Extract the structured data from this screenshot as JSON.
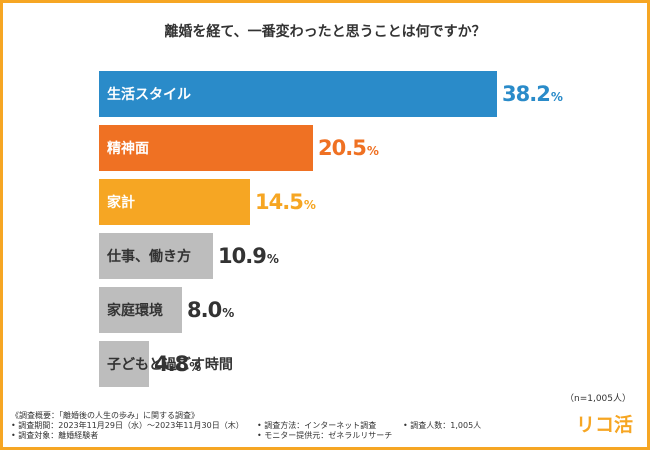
{
  "colors": {
    "blue": "#2a8bc9",
    "orange": "#ef7123",
    "light_orange": "#f6a623",
    "gray": "#bdbdbd",
    "dark_text": "#333333"
  },
  "chart_data": {
    "type": "bar",
    "orientation": "horizontal",
    "title": "離婚を経て、一番変わったと思うことは何ですか？",
    "categories": [
      "生活スタイル",
      "精神面",
      "家計",
      "仕事、働き方",
      "家庭環境",
      "子どもと過ごす時間"
    ],
    "values": [
      38.2,
      20.5,
      14.5,
      10.9,
      8.0,
      4.8
    ],
    "value_labels": [
      {
        "num": "38.2",
        "unit": "%"
      },
      {
        "num": "20.5",
        "unit": "%"
      },
      {
        "num": "14.5",
        "unit": "%"
      },
      {
        "num": "10.9",
        "unit": "%"
      },
      {
        "num": "8.0",
        "unit": "%"
      },
      {
        "num": "4.8",
        "unit": "%"
      }
    ],
    "bar_colors": [
      "#2a8bc9",
      "#ef7123",
      "#f6a623",
      "#bdbdbd",
      "#bdbdbd",
      "#bdbdbd"
    ],
    "label_colors": [
      "#ffffff",
      "#ffffff",
      "#ffffff",
      "#333333",
      "#333333",
      "#333333"
    ],
    "value_colors": [
      "#2a8bc9",
      "#ef7123",
      "#f6a623",
      "#333333",
      "#333333",
      "#333333"
    ],
    "xlim": [
      0,
      38.2
    ],
    "sample_note": "（n=1,005人）"
  },
  "survey": {
    "overview": "《調査概要：「離婚後の人生の歩み」に関する調査》",
    "period": "• 調査期間：2023年11月29日（水）〜2023年11月30日（木）",
    "method": "• 調査方法：インターネット調査",
    "count": "• 調査人数：1,005人",
    "target": "• 調査対象：離婚経験者",
    "provider": "• モニター提供元：ゼネラルリサーチ"
  },
  "brand": {
    "logo_text": "リコ活"
  }
}
